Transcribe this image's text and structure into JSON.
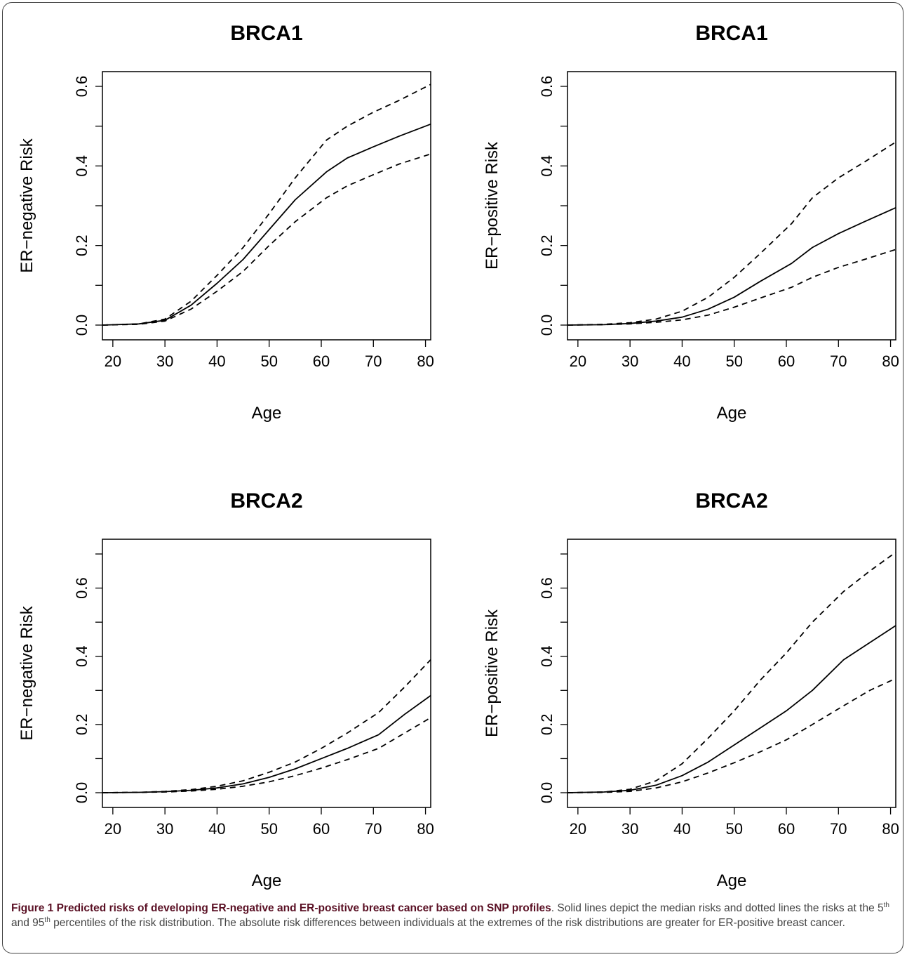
{
  "chart_data": [
    {
      "type": "line",
      "title": "BRCA1",
      "xlabel": "Age",
      "ylabel": "ER−negative Risk",
      "xlim": [
        18,
        81
      ],
      "ylim": [
        0,
        0.6
      ],
      "xticks": [
        20,
        30,
        40,
        50,
        60,
        70,
        80
      ],
      "yticks": [
        0.0,
        0.2,
        0.4,
        0.6
      ],
      "ytick_labels": [
        "0.0",
        "0.2",
        "0.4",
        "0.6"
      ],
      "series": [
        {
          "style": "solid",
          "x": [
            18,
            25,
            30,
            35,
            40,
            45,
            50,
            55,
            61,
            65,
            70,
            75,
            81
          ],
          "y": [
            0,
            0.003,
            0.012,
            0.05,
            0.105,
            0.165,
            0.24,
            0.315,
            0.385,
            0.42,
            0.448,
            0.475,
            0.505
          ]
        },
        {
          "style": "dashed",
          "x": [
            18,
            25,
            30,
            35,
            40,
            45,
            50,
            55,
            61,
            65,
            70,
            75,
            81
          ],
          "y": [
            0,
            0.003,
            0.015,
            0.06,
            0.125,
            0.195,
            0.28,
            0.37,
            0.465,
            0.5,
            0.535,
            0.565,
            0.605
          ]
        },
        {
          "style": "dashed",
          "x": [
            18,
            25,
            30,
            35,
            40,
            45,
            50,
            55,
            61,
            65,
            70,
            75,
            81
          ],
          "y": [
            0,
            0.002,
            0.01,
            0.04,
            0.085,
            0.135,
            0.2,
            0.26,
            0.32,
            0.35,
            0.378,
            0.405,
            0.43
          ]
        }
      ]
    },
    {
      "type": "line",
      "title": "BRCA1",
      "xlabel": "Age",
      "ylabel": "ER−positive Risk",
      "xlim": [
        18,
        81
      ],
      "ylim": [
        0,
        0.6
      ],
      "xticks": [
        20,
        30,
        40,
        50,
        60,
        70,
        80
      ],
      "yticks": [
        0.0,
        0.2,
        0.4,
        0.6
      ],
      "ytick_labels": [
        "0.0",
        "0.2",
        "0.4",
        "0.6"
      ],
      "series": [
        {
          "style": "solid",
          "x": [
            18,
            25,
            30,
            35,
            40,
            45,
            50,
            55,
            61,
            65,
            70,
            75,
            81
          ],
          "y": [
            0,
            0.001,
            0.004,
            0.01,
            0.02,
            0.04,
            0.07,
            0.11,
            0.155,
            0.195,
            0.23,
            0.26,
            0.295
          ]
        },
        {
          "style": "dashed",
          "x": [
            18,
            25,
            30,
            35,
            40,
            45,
            50,
            55,
            61,
            65,
            70,
            75,
            81
          ],
          "y": [
            0,
            0.002,
            0.006,
            0.015,
            0.035,
            0.07,
            0.12,
            0.18,
            0.255,
            0.32,
            0.37,
            0.41,
            0.46
          ]
        },
        {
          "style": "dashed",
          "x": [
            18,
            25,
            30,
            35,
            40,
            45,
            50,
            55,
            61,
            65,
            70,
            75,
            81
          ],
          "y": [
            0,
            0.001,
            0.003,
            0.007,
            0.013,
            0.025,
            0.045,
            0.068,
            0.095,
            0.12,
            0.145,
            0.165,
            0.19
          ]
        }
      ]
    },
    {
      "type": "line",
      "title": "BRCA2",
      "xlabel": "Age",
      "ylabel": "ER−negative Risk",
      "xlim": [
        18,
        81
      ],
      "ylim": [
        0,
        0.7
      ],
      "xticks": [
        20,
        30,
        40,
        50,
        60,
        70,
        80
      ],
      "yticks": [
        0.0,
        0.2,
        0.4,
        0.6
      ],
      "ytick_labels": [
        "0.0",
        "0.2",
        "0.4",
        "0.6"
      ],
      "series": [
        {
          "style": "solid",
          "x": [
            18,
            25,
            30,
            35,
            40,
            45,
            50,
            55,
            60,
            65,
            71,
            76,
            81
          ],
          "y": [
            0,
            0.001,
            0.003,
            0.007,
            0.014,
            0.026,
            0.045,
            0.07,
            0.1,
            0.13,
            0.17,
            0.23,
            0.285
          ]
        },
        {
          "style": "dashed",
          "x": [
            18,
            25,
            30,
            35,
            40,
            45,
            50,
            55,
            60,
            65,
            71,
            76,
            81
          ],
          "y": [
            0,
            0.001,
            0.004,
            0.009,
            0.019,
            0.035,
            0.06,
            0.09,
            0.13,
            0.175,
            0.235,
            0.31,
            0.39
          ]
        },
        {
          "style": "dashed",
          "x": [
            18,
            25,
            30,
            35,
            40,
            45,
            50,
            55,
            60,
            65,
            71,
            76,
            81
          ],
          "y": [
            0,
            0.001,
            0.002,
            0.005,
            0.01,
            0.019,
            0.032,
            0.05,
            0.072,
            0.097,
            0.13,
            0.175,
            0.22
          ]
        }
      ]
    },
    {
      "type": "line",
      "title": "BRCA2",
      "xlabel": "Age",
      "ylabel": "ER−positive Risk",
      "xlim": [
        18,
        81
      ],
      "ylim": [
        0,
        0.7
      ],
      "xticks": [
        20,
        30,
        40,
        50,
        60,
        70,
        80
      ],
      "yticks": [
        0.0,
        0.2,
        0.4,
        0.6
      ],
      "ytick_labels": [
        "0.0",
        "0.2",
        "0.4",
        "0.6"
      ],
      "series": [
        {
          "style": "solid",
          "x": [
            18,
            25,
            30,
            35,
            40,
            45,
            50,
            55,
            60,
            65,
            71,
            76,
            81
          ],
          "y": [
            0,
            0.002,
            0.007,
            0.022,
            0.05,
            0.09,
            0.14,
            0.19,
            0.24,
            0.3,
            0.39,
            0.44,
            0.49
          ]
        },
        {
          "style": "dashed",
          "x": [
            18,
            25,
            30,
            35,
            40,
            45,
            50,
            55,
            60,
            65,
            71,
            76,
            81
          ],
          "y": [
            0,
            0.002,
            0.01,
            0.035,
            0.085,
            0.16,
            0.24,
            0.33,
            0.41,
            0.5,
            0.59,
            0.65,
            0.705
          ]
        },
        {
          "style": "dashed",
          "x": [
            18,
            25,
            30,
            35,
            40,
            45,
            50,
            55,
            60,
            65,
            71,
            76,
            81
          ],
          "y": [
            0,
            0.001,
            0.004,
            0.014,
            0.032,
            0.058,
            0.088,
            0.12,
            0.155,
            0.2,
            0.255,
            0.3,
            0.335
          ]
        }
      ]
    }
  ],
  "caption": {
    "title": "Figure 1 Predicted risks of developing ER-negative and ER-positive breast cancer based on SNP profiles",
    "text_1": ". Solid lines depict the median risks and dotted lines the risks at the 5",
    "sup_1": "th",
    "text_2": " and 95",
    "sup_2": "th",
    "text_3": " percentiles of the risk distribution. The absolute risk differences between individuals at the extremes of the risk distributions are greater for ER-positive breast cancer."
  }
}
